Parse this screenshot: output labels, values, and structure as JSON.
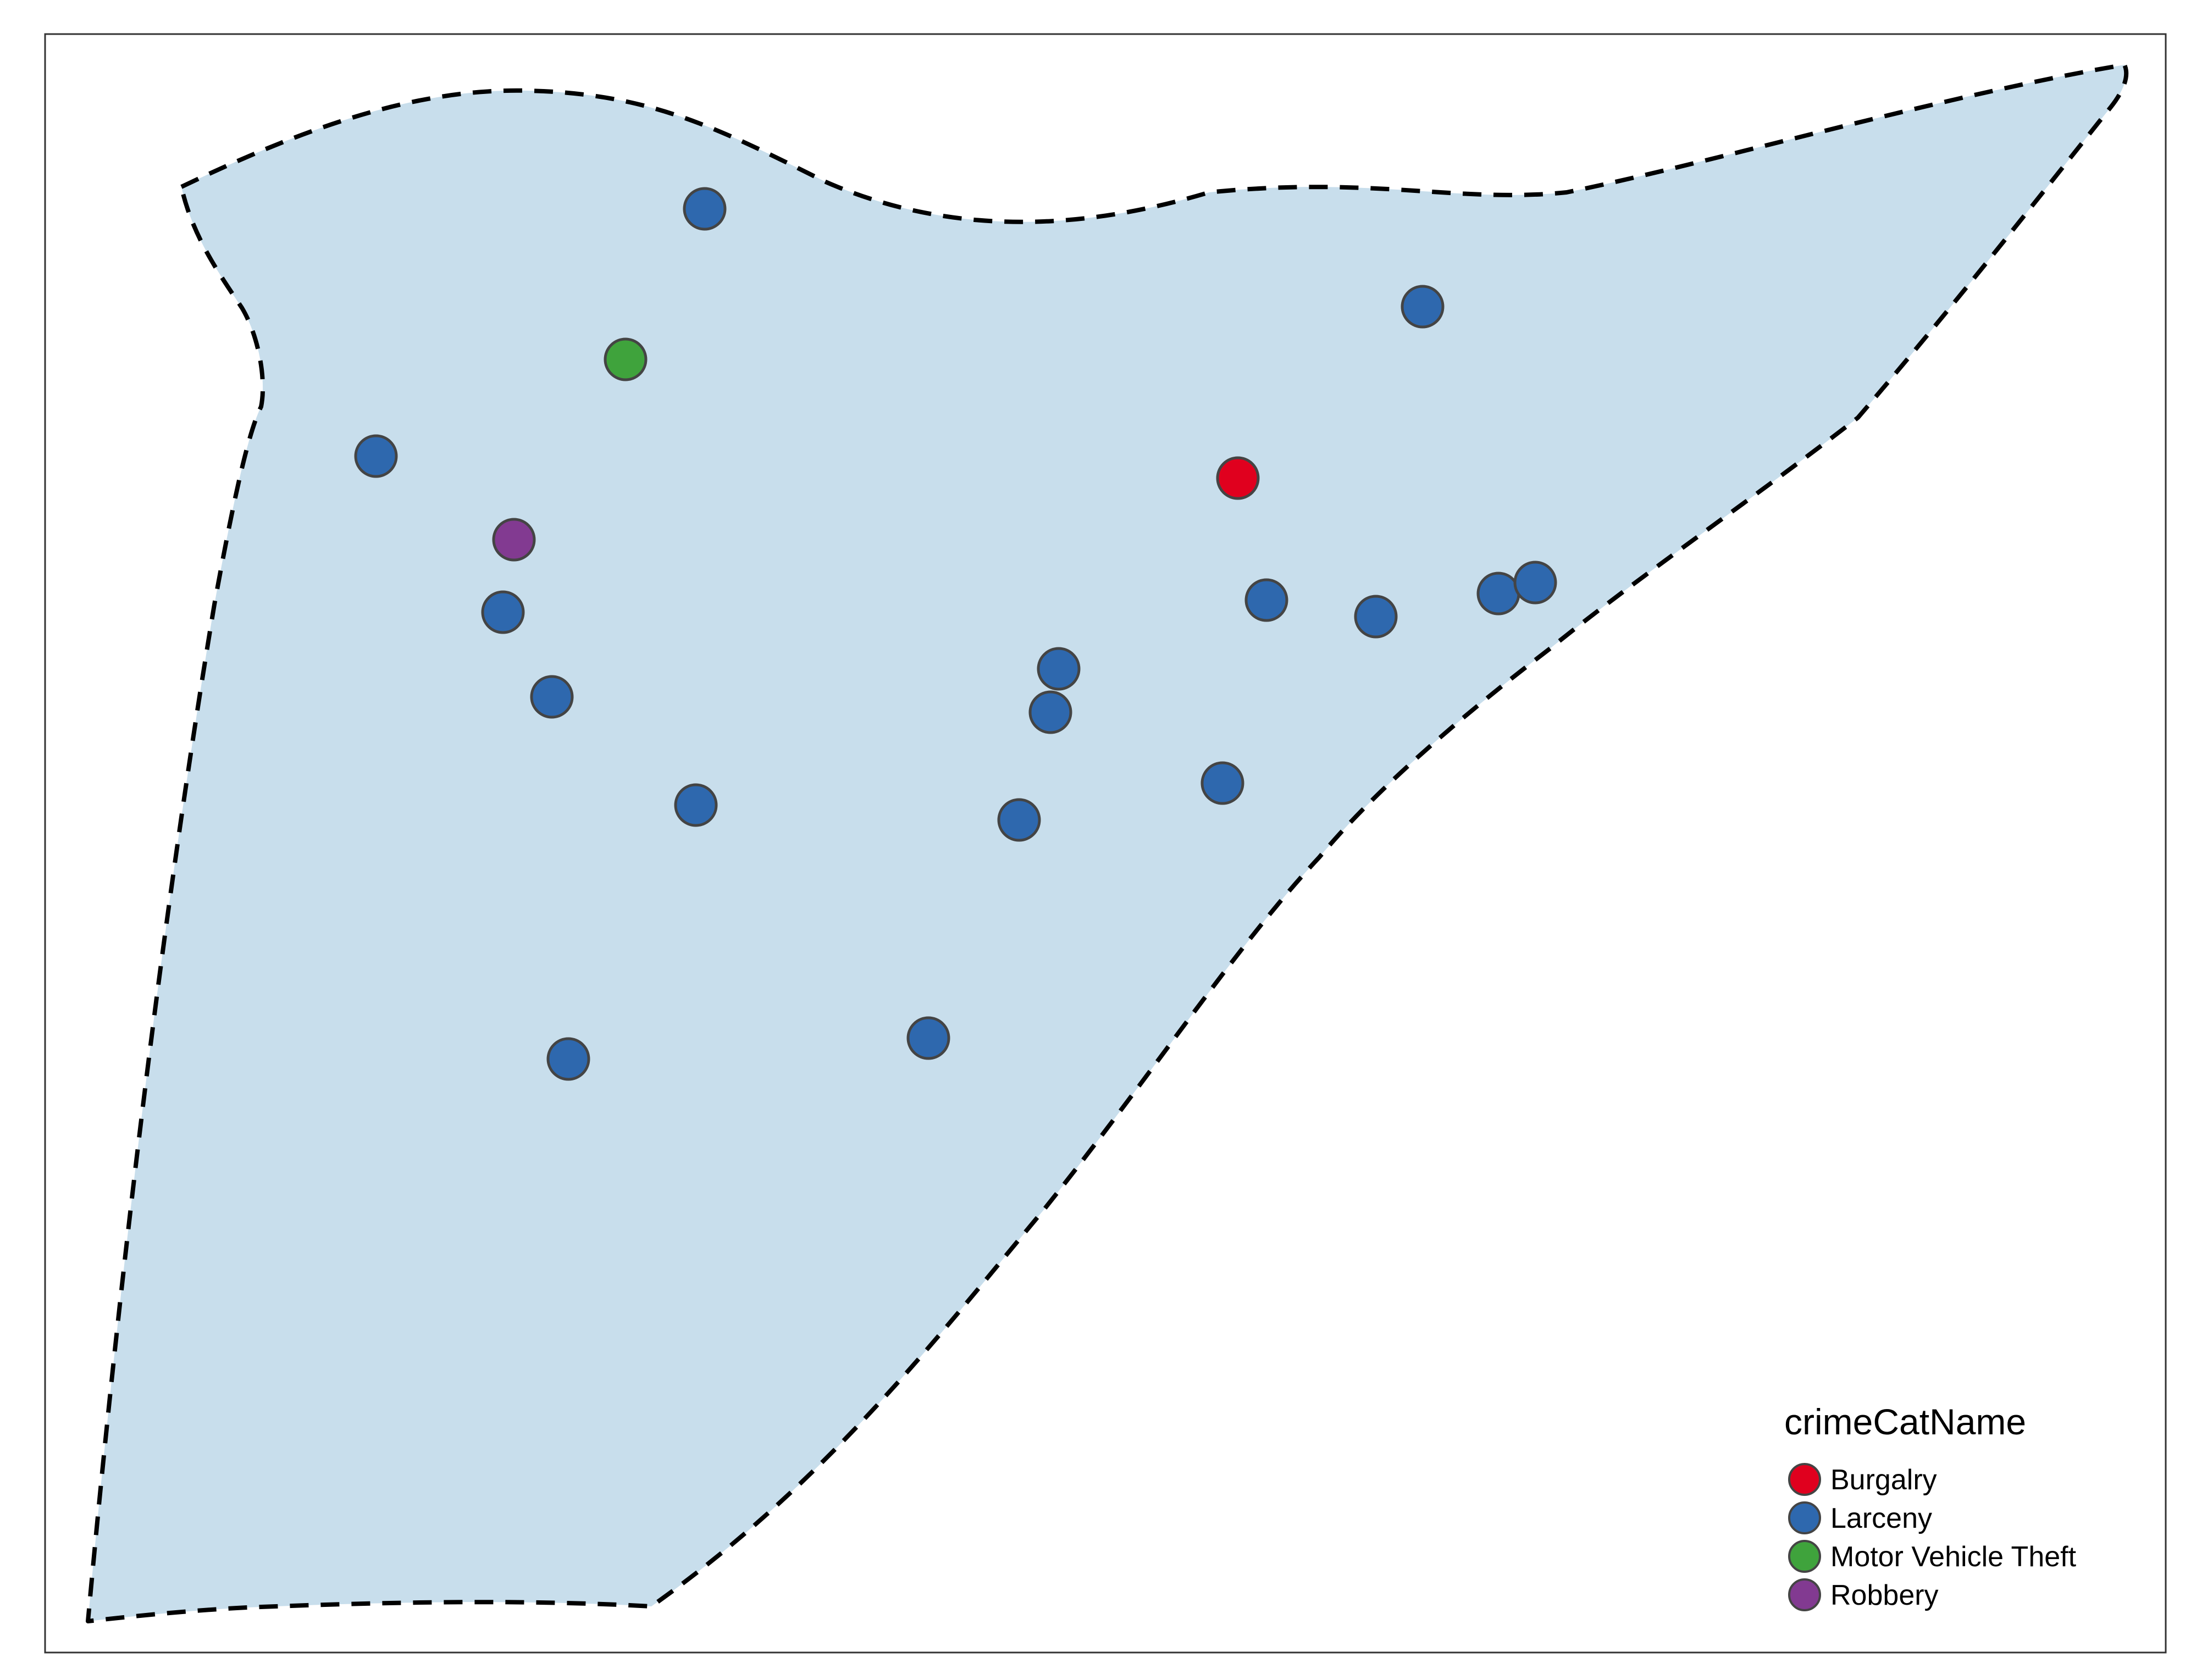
{
  "legend": {
    "title": "crimeCatName",
    "items": [
      {
        "label": "Burgalry",
        "color": "#E0001E"
      },
      {
        "label": "Larceny",
        "color": "#2E68AE"
      },
      {
        "label": "Motor Vehicle Theft",
        "color": "#3FA33C"
      },
      {
        "label": "Robbery",
        "color": "#823A91"
      }
    ]
  },
  "colors": {
    "area_fill": "#C8DEEC",
    "boundary_stroke": "#000000",
    "point_stroke": "#444444",
    "frame": "#333333"
  }
}
